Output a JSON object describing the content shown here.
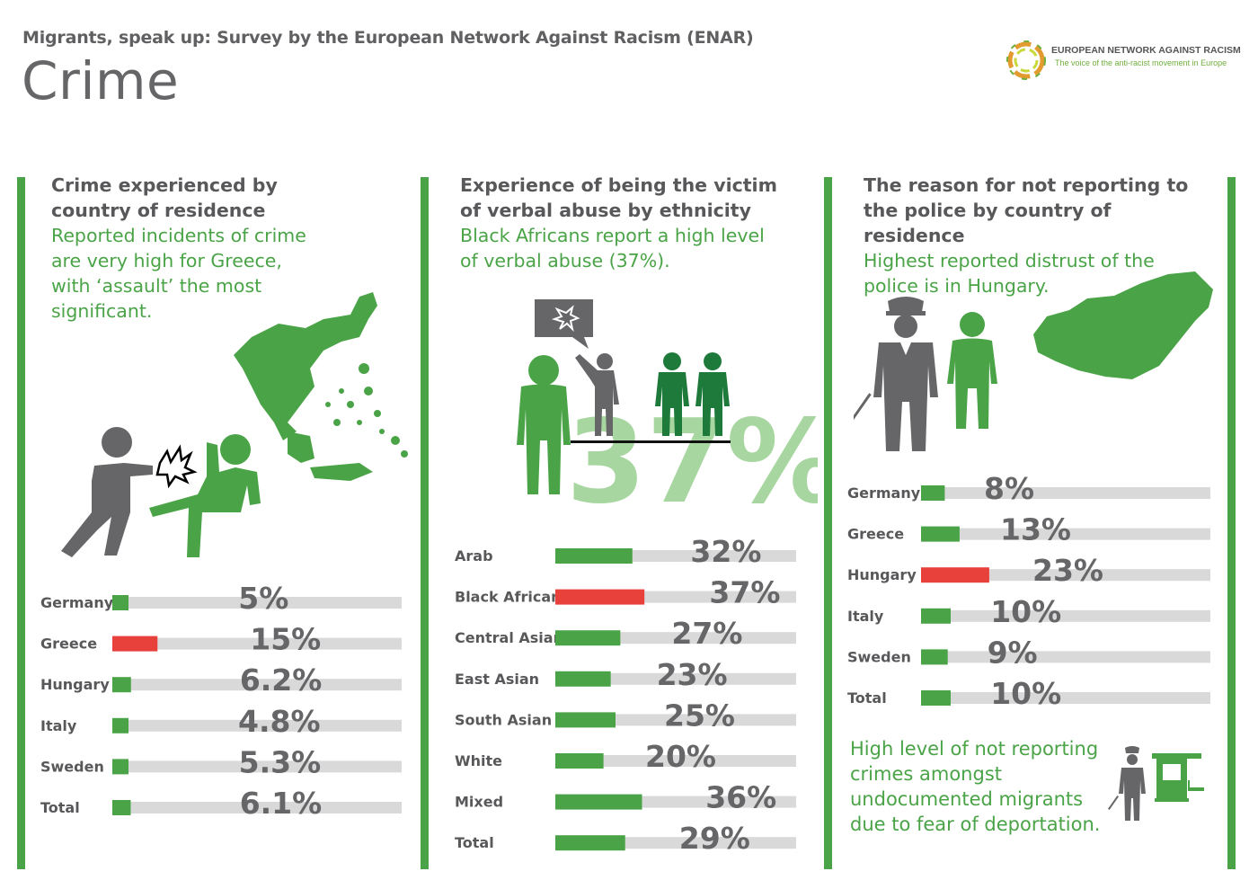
{
  "header": {
    "subtitle": "Migrants, speak up: Survey by the European Network Against Racism (ENAR)",
    "title": "Crime"
  },
  "logo": {
    "mark": "enar",
    "name": "EUROPEAN NETWORK AGAINST RACISM",
    "tagline": "The voice of the anti-racist movement in Europe"
  },
  "colors": {
    "green": "#4aa447",
    "dark_green": "#1e7a3a",
    "highlight_red": "#e8403a",
    "track": "#d9d9d9",
    "gray_figure": "#666668",
    "big_percent": "#a8d6a0"
  },
  "panels": [
    {
      "heading": "Crime experienced by country of residence",
      "subheading": "Reported incidents of crime are very high for Greece, with ‘assault’ the most significant.",
      "icons": [
        "assault-figures-icon",
        "greece-map-icon"
      ]
    },
    {
      "heading": "Experience of being the victim of verbal abuse by ethnicity",
      "subheading": "Black Africans report a high level of verbal abuse (37%).",
      "big_figure": "37%",
      "icons": [
        "verbal-abuse-figures-icon",
        "speech-bubble-icon"
      ]
    },
    {
      "heading": "The reason for not reporting to the police by country of residence",
      "subheading": "Highest reported distrust of the police is in Hungary.",
      "icons": [
        "police-officer-icon",
        "hungary-map-icon"
      ],
      "note": "High level of not reporting crimes amongst undocumented migrants due to fear of deportation."
    }
  ],
  "chart_data": [
    {
      "type": "bar",
      "categories": [
        "Germany",
        "Greece",
        "Hungary",
        "Italy",
        "Sweden",
        "Total"
      ],
      "values": [
        5,
        15,
        6.2,
        4.8,
        5.3,
        6.1
      ],
      "value_labels": [
        "5%",
        "15%",
        "6.2%",
        "4.8%",
        "5.3%",
        "6.1%"
      ],
      "highlight": "Greece",
      "xlim": [
        0,
        100
      ]
    },
    {
      "type": "bar",
      "categories": [
        "Arab",
        "Black African",
        "Central Asian",
        "East Asian",
        "South Asian",
        "White",
        "Mixed",
        "Total"
      ],
      "values": [
        32,
        37,
        27,
        23,
        25,
        20,
        36,
        29
      ],
      "value_labels": [
        "32%",
        "37%",
        "27%",
        "23%",
        "25%",
        "20%",
        "36%",
        "29%"
      ],
      "highlight": "Black African",
      "xlim": [
        0,
        100
      ]
    },
    {
      "type": "bar",
      "categories": [
        "Germany",
        "Greece",
        "Hungary",
        "Italy",
        "Sweden",
        "Total"
      ],
      "values": [
        8,
        13,
        23,
        10,
        9,
        10
      ],
      "value_labels": [
        "8%",
        "13%",
        "23%",
        "10%",
        "9%",
        "10%"
      ],
      "highlight": "Hungary",
      "xlim": [
        0,
        100
      ]
    }
  ]
}
